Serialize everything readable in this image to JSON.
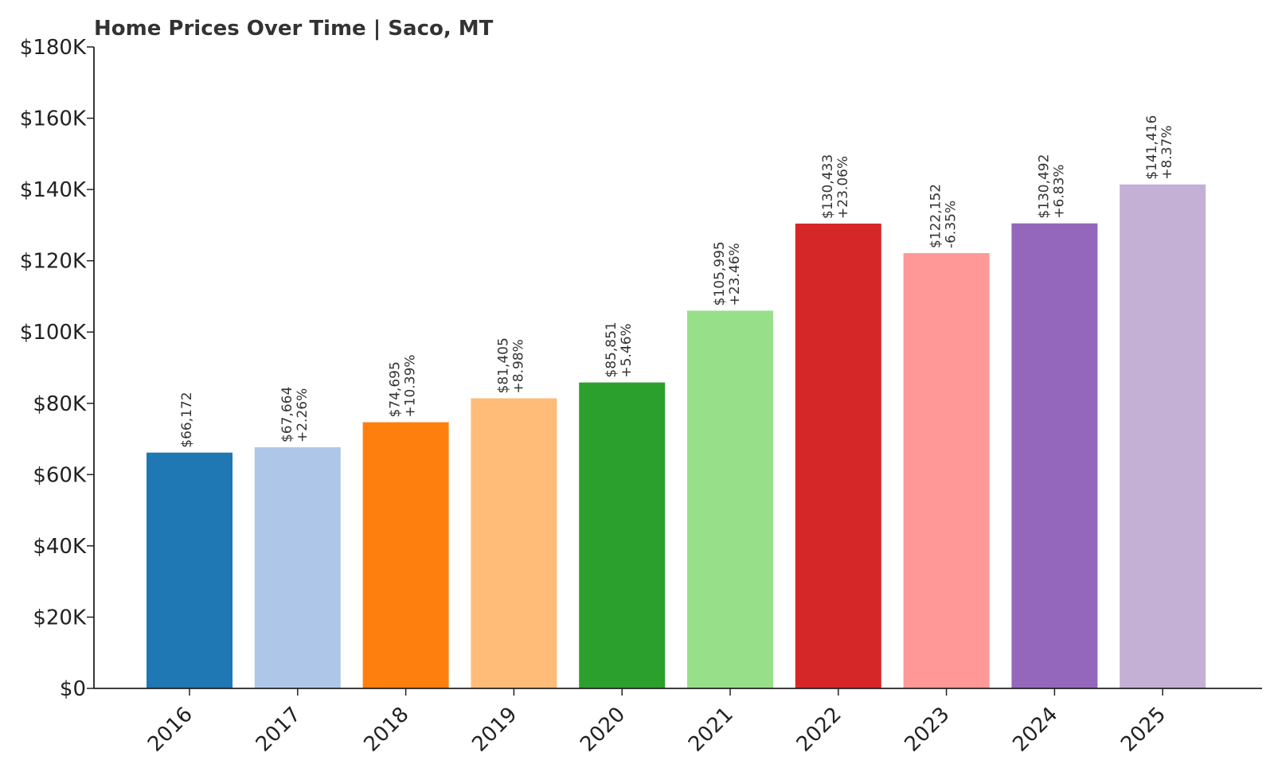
{
  "chart_data": {
    "type": "bar",
    "title": "Home Prices Over Time | Saco, MT",
    "xlabel": "",
    "ylabel": "",
    "categories": [
      "2016",
      "2017",
      "2018",
      "2019",
      "2020",
      "2021",
      "2022",
      "2023",
      "2024",
      "2025"
    ],
    "values": [
      66172,
      67664,
      74695,
      81405,
      85851,
      105995,
      130433,
      122152,
      130492,
      141416
    ],
    "value_labels": [
      "$66,172",
      "$67,664",
      "$74,695",
      "$81,405",
      "$85,851",
      "$105,995",
      "$130,433",
      "$122,152",
      "$130,492",
      "$141,416"
    ],
    "change_labels": [
      "",
      "+2.26%",
      "+10.39%",
      "+8.98%",
      "+5.46%",
      "+23.46%",
      "+23.06%",
      "-6.35%",
      "+6.83%",
      "+8.37%"
    ],
    "colors": [
      "#1f77b4",
      "#aec7e8",
      "#ff7f0e",
      "#ffbb78",
      "#2ca02c",
      "#98df8a",
      "#d62728",
      "#ff9896",
      "#9467bd",
      "#c5b0d5"
    ],
    "ylim": [
      0,
      180000
    ],
    "yticks": [
      0,
      20000,
      40000,
      60000,
      80000,
      100000,
      120000,
      140000,
      160000,
      180000
    ],
    "ytick_labels": [
      "$0",
      "$20K",
      "$40K",
      "$60K",
      "$80K",
      "$100K",
      "$120K",
      "$140K",
      "$160K",
      "$180K"
    ],
    "grid": false,
    "legend": "none"
  }
}
